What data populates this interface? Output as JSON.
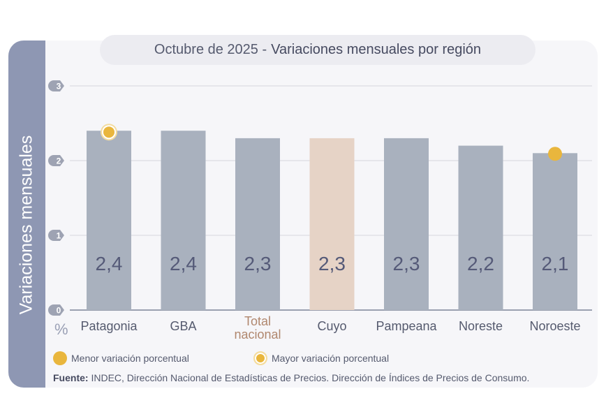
{
  "title": {
    "date": "Octubre de 2025 -",
    "main": "Variaciones mensuales por región"
  },
  "chart_data": {
    "type": "bar",
    "ylabel": "Variaciones mensuales",
    "yunit": "%",
    "ylim": [
      0,
      3
    ],
    "yticks": [
      "0",
      "1",
      "2",
      "3"
    ],
    "categories": [
      "Patagonia",
      "GBA",
      "Total nacional",
      "Cuyo",
      "Pampeana",
      "Noreste",
      "Noroeste"
    ],
    "values": [
      2.4,
      2.4,
      2.3,
      2.3,
      2.3,
      2.2,
      2.1
    ],
    "data_labels": [
      "2,4",
      "2,4",
      "2,3",
      "2,3",
      "2,3",
      "2,2",
      "2,1"
    ],
    "highlight": {
      "category": "Cuyo",
      "color": "#e6d3c6"
    },
    "bar_color": "#a9b1be",
    "markers": [
      {
        "category": "Patagonia",
        "type": "mayor"
      },
      {
        "category": "Noroeste",
        "type": "menor"
      }
    ],
    "grid": true
  },
  "legend": {
    "menor": "Menor variación porcentual",
    "mayor": "Mayor variación porcentual",
    "color": "#e9b63d"
  },
  "source": {
    "label": "Fuente:",
    "text": "INDEC, Dirección Nacional de Estadísticas de Precios. Dirección de Índices de Precios de Consumo."
  }
}
